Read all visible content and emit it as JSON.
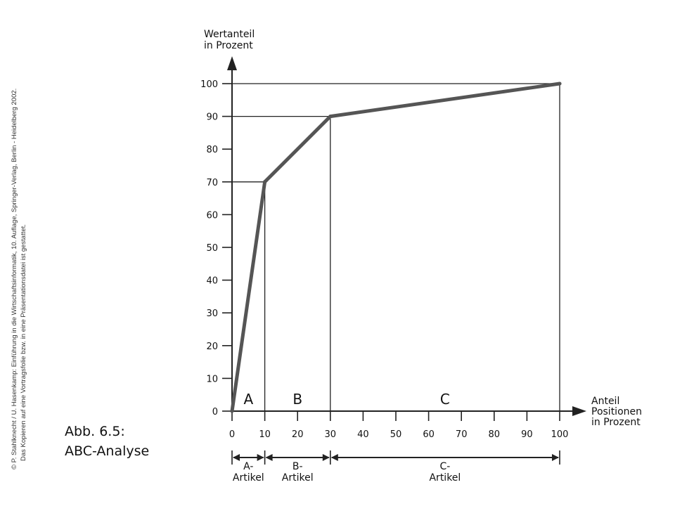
{
  "copyright_lines": [
    "© P. Stahlknecht / U. Hasenkamp: Einführung in die Wirtschaftsinformatik, 10. Auflage, Springer-Verlag, Berlin - Heidelberg 2002.",
    "Das Kopieren auf eine Vortragsfolie bzw. in eine Präsentationsdatei ist gestattet."
  ],
  "caption": {
    "line1": "Abb. 6.5:",
    "line2": "ABC-Analyse"
  },
  "chart_data": {
    "type": "line",
    "title": "",
    "ylabel_lines": [
      "Wertanteil",
      "in Prozent"
    ],
    "xlabel_lines": [
      "Anteil",
      "Positionen",
      "in Prozent"
    ],
    "xlim": [
      0,
      100
    ],
    "ylim": [
      0,
      100
    ],
    "x_ticks": [
      0,
      10,
      20,
      30,
      40,
      50,
      60,
      70,
      80,
      90,
      100
    ],
    "y_ticks": [
      0,
      10,
      20,
      30,
      40,
      50,
      60,
      70,
      80,
      90,
      100
    ],
    "x_tick_labels": [
      "0",
      "10",
      "20",
      "30",
      "40",
      "50",
      "60",
      "70",
      "80",
      "90",
      "100"
    ],
    "y_tick_labels": [
      "0",
      "10",
      "20",
      "30",
      "40",
      "50",
      "60",
      "70",
      "80",
      "90",
      "100"
    ],
    "grid": false,
    "series": [
      {
        "x": [
          0,
          10,
          30,
          100
        ],
        "y": [
          0,
          70,
          90,
          100
        ]
      }
    ],
    "zones": [
      {
        "label": "A",
        "x_from": 0,
        "x_to": 10,
        "range_label_lines": [
          "A-",
          "Artikel"
        ]
      },
      {
        "label": "B",
        "x_from": 10,
        "x_to": 30,
        "range_label_lines": [
          "B-",
          "Artikel"
        ]
      },
      {
        "label": "C",
        "x_from": 30,
        "x_to": 100,
        "range_label_lines": [
          "C-",
          "Artikel"
        ]
      }
    ],
    "colors": {
      "curve": "#555555",
      "axis": "#222222"
    }
  }
}
